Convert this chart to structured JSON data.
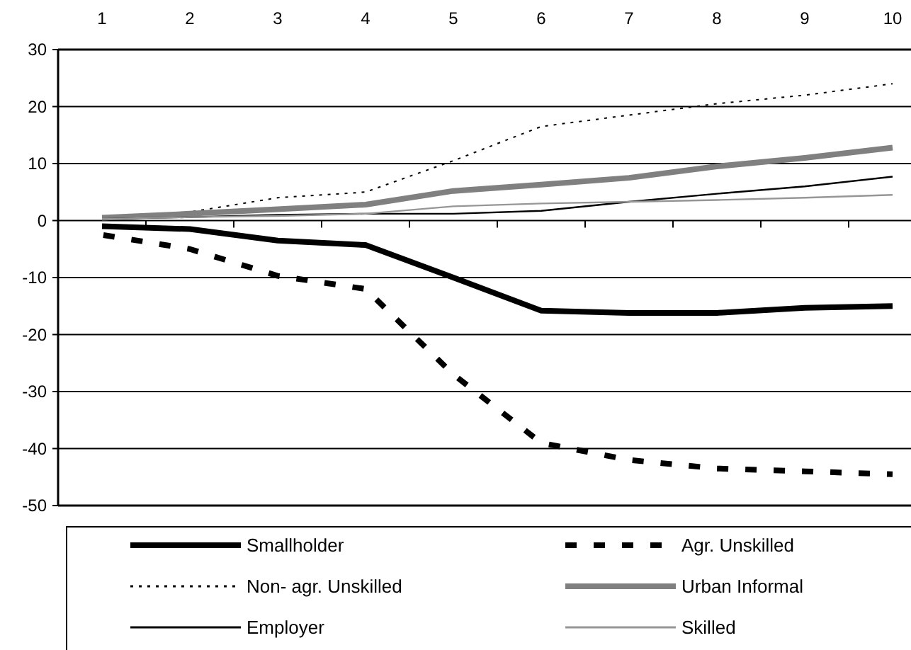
{
  "chart_data": {
    "type": "line",
    "categories": [
      "1",
      "2",
      "3",
      "4",
      "5",
      "6",
      "7",
      "8",
      "9",
      "10"
    ],
    "ylim": [
      -50,
      30
    ],
    "yticks": [
      -50,
      -40,
      -30,
      -20,
      -10,
      0,
      10,
      20,
      30
    ],
    "grid": "y",
    "legend": "bottom",
    "series": [
      {
        "name": "Smallholder",
        "color": "#000000",
        "line_style": "solid",
        "values": [
          -1,
          -1.5,
          -3.5,
          -4.3,
          -10,
          -15.8,
          -16.2,
          -16.2,
          -15.3,
          -15
        ]
      },
      {
        "name": "Agr. Unskilled",
        "color": "#000000",
        "line_style": "dashed",
        "values": [
          -2.5,
          -5,
          -9.7,
          -12,
          -27,
          -39,
          -42,
          -43.5,
          -44,
          -44.5
        ]
      },
      {
        "name": "Non- agr. Unskilled",
        "color": "#000000",
        "line_style": "dotted",
        "values": [
          0.5,
          1.5,
          4,
          5,
          10.5,
          16.5,
          18.5,
          20.5,
          22,
          24
        ]
      },
      {
        "name": "Urban Informal",
        "color": "#808080",
        "line_style": "solid",
        "values": [
          0.5,
          1.2,
          2,
          2.8,
          5.2,
          6.3,
          7.5,
          9.5,
          11,
          12.8
        ]
      },
      {
        "name": "Employer",
        "color": "#000000",
        "line_style": "solid",
        "values": [
          0.3,
          0.6,
          1,
          1.2,
          1.2,
          1.7,
          3.3,
          4.7,
          6,
          7.7
        ]
      },
      {
        "name": "Skilled",
        "color": "#969696",
        "line_style": "solid",
        "values": [
          0.3,
          0.6,
          0.8,
          1.2,
          2.5,
          3,
          3.3,
          3.6,
          4,
          4.5
        ]
      }
    ]
  }
}
